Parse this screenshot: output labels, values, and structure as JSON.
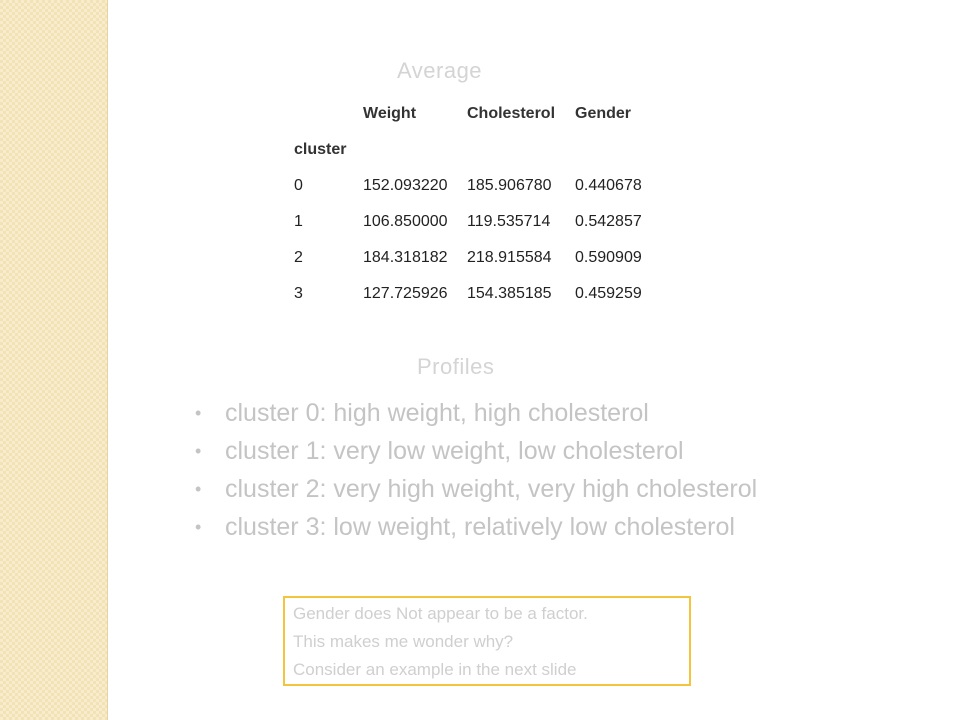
{
  "slide": {
    "heading_average": "Average",
    "heading_profiles": "Profiles"
  },
  "table": {
    "columns": [
      "Weight",
      "Cholesterol",
      "Gender"
    ],
    "index_name": "cluster",
    "rows": [
      {
        "cluster": "0",
        "weight": "152.093220",
        "cholesterol": "185.906780",
        "gender": "0.440678"
      },
      {
        "cluster": "1",
        "weight": "106.850000",
        "cholesterol": "119.535714",
        "gender": "0.542857"
      },
      {
        "cluster": "2",
        "weight": "184.318182",
        "cholesterol": "218.915584",
        "gender": "0.590909"
      },
      {
        "cluster": "3",
        "weight": "127.725926",
        "cholesterol": "154.385185",
        "gender": "0.459259"
      }
    ]
  },
  "profiles": [
    "cluster 0:  high weight, high cholesterol",
    "cluster 1:  very low weight, low cholesterol",
    "cluster 2:  very high weight, very high cholesterol",
    "cluster 3:  low weight, relatively low cholesterol"
  ],
  "note": {
    "line1": "Gender does Not appear to be a factor.",
    "line2": "This makes me wonder why?",
    "line3": "Consider an example in the next slide"
  },
  "colors": {
    "side_strip": "#f3e2b3",
    "note_border": "#f2c53d",
    "faded_text": "#c4c4c4"
  }
}
